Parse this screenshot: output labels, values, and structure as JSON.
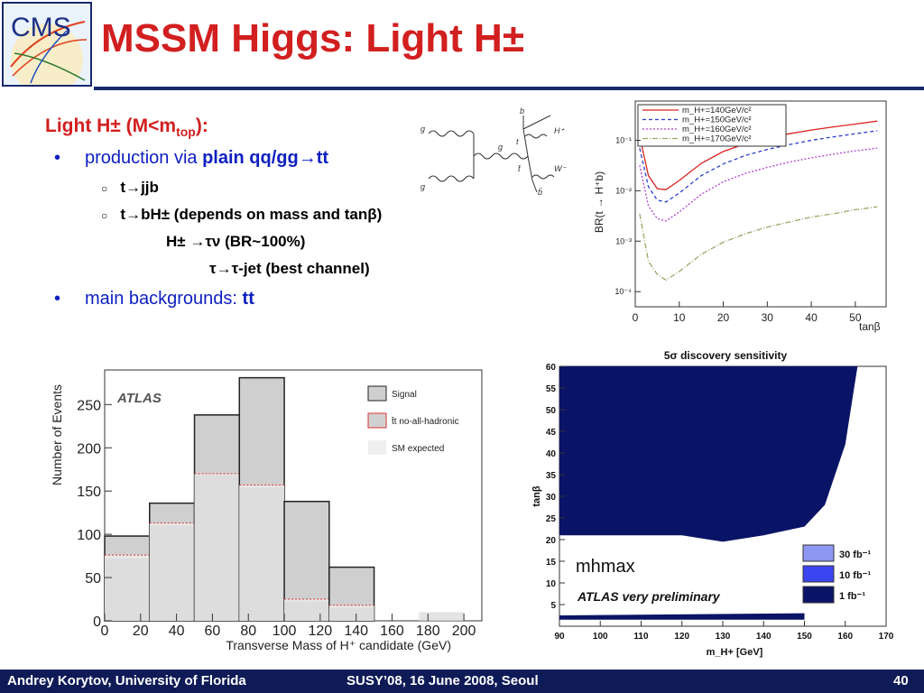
{
  "slide": {
    "title": "MSSM Higgs: Light H±",
    "logo_text": "CMS",
    "heading_main": "Light H± (M<m",
    "heading_sub": "top",
    "heading_end": "):",
    "bullet1_prefix": "production via ",
    "bullet1_bold": "plain qq/gg→tt",
    "sub1": "t→jjb",
    "sub2": "t→bH± (depends on mass and tanβ)",
    "sub3": "H± →τν (BR~100%)",
    "sub4": "τ→τ-jet (best channel)",
    "bullet2_prefix": "main backgrounds: ",
    "bullet2_bold": "tt",
    "bullet_glyph": "•",
    "sub_glyph": "○"
  },
  "footer": {
    "author": "Andrey Korytov, University of Florida",
    "event": "SUSY’08, 16 June 2008, Seoul",
    "page": "40"
  },
  "feynman": {
    "labels": [
      "g",
      "g",
      "g",
      "b",
      "t",
      "H⁺",
      "t̄",
      "W⁻",
      "b̄"
    ]
  },
  "br_chart": {
    "type": "line",
    "ylabel": "BR(t → H⁺b)",
    "xlabel": "tanβ",
    "x_ticks": [
      0,
      10,
      20,
      30,
      40,
      50
    ],
    "y_ticks": [
      "10⁻⁴",
      "10⁻³",
      "10⁻²",
      "10⁻¹"
    ],
    "legend": [
      "m_H+=140GeV/c²",
      "m_H+=150GeV/c²",
      "m_H+=160GeV/c²",
      "m_H+=170GeV/c²"
    ],
    "colors": [
      "#d9231f",
      "#2b3fc8",
      "#b23fd0",
      "#9aa86a"
    ]
  },
  "hist_chart": {
    "type": "bar",
    "watermark": "ATLAS",
    "xlabel": "Transverse Mass of H⁺ candidate (GeV)",
    "ylabel": "Number of Events",
    "x_ticks": [
      0,
      20,
      40,
      60,
      80,
      100,
      120,
      140,
      160,
      180,
      200
    ],
    "y_ticks": [
      0,
      50,
      100,
      150,
      200,
      250
    ],
    "legend": [
      "Signal",
      "t̄t no-all-hadronic",
      "SM expected"
    ]
  },
  "sens_chart": {
    "type": "area",
    "title": "5σ discovery sensitivity",
    "xlabel": "m_H+ [GeV]",
    "ylabel": "tanβ",
    "x_ticks": [
      90,
      100,
      110,
      120,
      130,
      140,
      150,
      160,
      170
    ],
    "y_ticks": [
      5,
      10,
      15,
      20,
      25,
      30,
      35,
      40,
      45,
      50,
      55,
      60
    ],
    "annotation1": "mhmax",
    "annotation2": "ATLAS very preliminary",
    "legend": [
      "30 fb⁻¹",
      "10 fb⁻¹",
      "1 fb⁻¹"
    ],
    "colors": [
      "#8e97f2",
      "#3b45f0",
      "#0a1466"
    ]
  },
  "chart_data": [
    {
      "type": "line",
      "ylabel": "BR(t → H⁺b)",
      "xlabel": "tanβ",
      "xlim": [
        0,
        57
      ],
      "ylog": true,
      "ylim": [
        5e-05,
        0.6
      ],
      "x": [
        1,
        3,
        5,
        7,
        10,
        15,
        20,
        25,
        30,
        35,
        40,
        45,
        50,
        55
      ],
      "series": [
        {
          "name": "m_H+=140GeV/c²",
          "values": [
            0.12,
            0.02,
            0.011,
            0.0105,
            0.016,
            0.035,
            0.06,
            0.085,
            0.11,
            0.135,
            0.16,
            0.185,
            0.21,
            0.24
          ]
        },
        {
          "name": "m_H+=150GeV/c²",
          "values": [
            0.07,
            0.012,
            0.0065,
            0.006,
            0.009,
            0.02,
            0.034,
            0.05,
            0.066,
            0.082,
            0.1,
            0.117,
            0.135,
            0.155
          ]
        },
        {
          "name": "m_H+=160GeV/c²",
          "values": [
            0.032,
            0.005,
            0.0028,
            0.0025,
            0.0038,
            0.0085,
            0.015,
            0.022,
            0.029,
            0.037,
            0.045,
            0.053,
            0.062,
            0.07
          ]
        },
        {
          "name": "m_H+=170GeV/c²",
          "values": [
            0.0035,
            0.0004,
            0.00022,
            0.00017,
            0.00025,
            0.00055,
            0.00095,
            0.0014,
            0.0019,
            0.0024,
            0.003,
            0.0035,
            0.0042,
            0.0048
          ]
        }
      ]
    },
    {
      "type": "bar",
      "xlabel": "Transverse Mass of H⁺ candidate (GeV)",
      "ylabel": "Number of Events",
      "ylim": [
        0,
        290
      ],
      "bin_edges": [
        0,
        25,
        50,
        75,
        100,
        125,
        150,
        175,
        200
      ],
      "series": [
        {
          "name": "Signal",
          "values": [
            98,
            136,
            238,
            281,
            138,
            62,
            0,
            0
          ]
        },
        {
          "name": "t̄t no-all-hadronic",
          "values": [
            76,
            113,
            170,
            157,
            25,
            18,
            0,
            0
          ]
        },
        {
          "name": "SM expected",
          "values": [
            72,
            110,
            168,
            154,
            22,
            15,
            0,
            10
          ]
        }
      ]
    },
    {
      "type": "area",
      "title": "5σ discovery sensitivity",
      "xlabel": "m_H+ [GeV]",
      "ylabel": "tanβ",
      "xlim": [
        90,
        170
      ],
      "ylim": [
        0,
        60
      ],
      "x": [
        90,
        100,
        110,
        120,
        130,
        140,
        150,
        155,
        160,
        163,
        165
      ],
      "series": [
        {
          "name": "30 fb⁻¹",
          "values": [
            25,
            24.5,
            24,
            24,
            22.5,
            24,
            25,
            30,
            45,
            60,
            60
          ]
        },
        {
          "name": "10 fb⁻¹",
          "values": [
            22.5,
            22.5,
            22,
            22,
            20.5,
            22,
            24,
            29,
            43,
            60,
            60
          ]
        },
        {
          "name": "1 fb⁻¹",
          "values": [
            21,
            21,
            21,
            21,
            19.5,
            21,
            23,
            28,
            42,
            60,
            60
          ]
        }
      ]
    }
  ]
}
